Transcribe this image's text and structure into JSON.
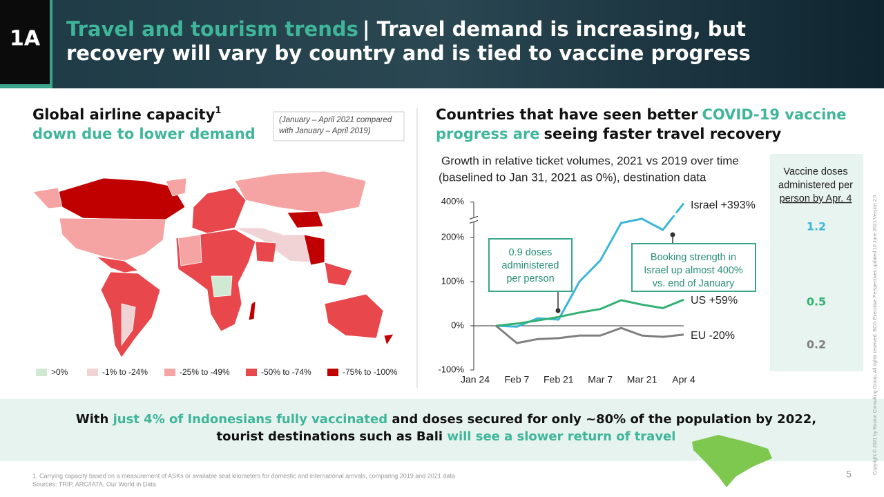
{
  "header": {
    "badge": "1A",
    "title_accent": "Travel and tourism trends",
    "title_rest_line1": "| Travel demand is increasing, but",
    "title_line2": "recovery will vary by country and is tied to vaccine progress"
  },
  "left_panel": {
    "title_line1": "Global airline capacity",
    "title_sup": "1",
    "title_line2": "down due to lower demand",
    "note_line1": "(January – April 2021 compared",
    "note_line2": "with January – April 2019)",
    "legend": [
      {
        "label": ">0%",
        "color": "#cfe9d3"
      },
      {
        "label": "-1% to -24%",
        "color": "#f1d3d6"
      },
      {
        "label": "-25% to -49%",
        "color": "#f5a3a3"
      },
      {
        "label": "-50% to -74%",
        "color": "#e8474c"
      },
      {
        "label": "-75% to -100%",
        "color": "#c00000"
      }
    ]
  },
  "right_panel": {
    "title_a": "Countries that have seen better",
    "title_b": "COVID-19 vaccine",
    "title_c": "progress are",
    "title_d": "seeing faster travel recovery"
  },
  "chart_data": {
    "type": "line",
    "subtitle_line1": "Growth in relative ticket volumes, 2021 vs 2019 over time",
    "subtitle_line2": "(baselined to Jan 31, 2021 as 0%), destination data",
    "categories": [
      "Jan 24",
      null,
      "Feb 7",
      null,
      "Feb 21",
      null,
      "Mar 7",
      null,
      "Mar 21",
      null,
      "Apr 4"
    ],
    "series": [
      {
        "name": "Israel +393%",
        "color": "#3bb6d6",
        "values": [
          null,
          0,
          -2,
          17,
          14,
          100,
          148,
          282,
          306,
          243,
          393
        ]
      },
      {
        "name": "US +59%",
        "color": "#32b071",
        "values": [
          null,
          0,
          5,
          12,
          20,
          30,
          38,
          58,
          48,
          40,
          59
        ]
      },
      {
        "name": "EU -20%",
        "color": "#7f7f7f",
        "values": [
          null,
          0,
          -39,
          -30,
          -28,
          -22,
          -22,
          -5,
          -22,
          -25,
          -20
        ]
      }
    ],
    "ylim": [
      -100,
      400
    ],
    "yticks": [
      {
        "value": -100,
        "label": "-100%"
      },
      {
        "value": 0,
        "label": "0%"
      },
      {
        "value": 100,
        "label": "100%"
      },
      {
        "value": 200,
        "label": "200%"
      },
      {
        "value": 400,
        "label": "400%"
      }
    ],
    "annotations": [
      {
        "lines": [
          "0.9 doses",
          "administered",
          "per person"
        ]
      },
      {
        "lines": [
          "Booking strength in",
          "Israel up almost 400%",
          "vs. end of January"
        ]
      }
    ]
  },
  "vaccine_panel": {
    "title_lines": [
      "Vaccine doses",
      "administered per",
      "person by Apr. 4"
    ],
    "values": [
      "1.2",
      "0.5",
      "0.2"
    ],
    "colors": [
      "#3bb6d6",
      "#32b071",
      "#7f7f7f"
    ]
  },
  "bottom_band": {
    "l1_a": "With",
    "l1_b": "just 4% of Indonesians fully vaccinated",
    "l1_c": "and doses secured for only ~80% of the population by 2022,",
    "l2_a": "tourist destinations such as Bali",
    "l2_b": "will see a slower return of travel"
  },
  "footer": {
    "footnote": "1. Carrying capacity based on a measurement of ASKs or available seat kilometers for domestic and international arrivals, comparing 2019 and 2021 data",
    "sources": "Sources: TRIP, ARC/IATA, Our World in Data",
    "page": "5",
    "copyright": "Copyright © 2021 by Boston Consulting Group. All rights reserved. BCG Executive Perspectives updated 10 June 2021 Version 2.0"
  }
}
